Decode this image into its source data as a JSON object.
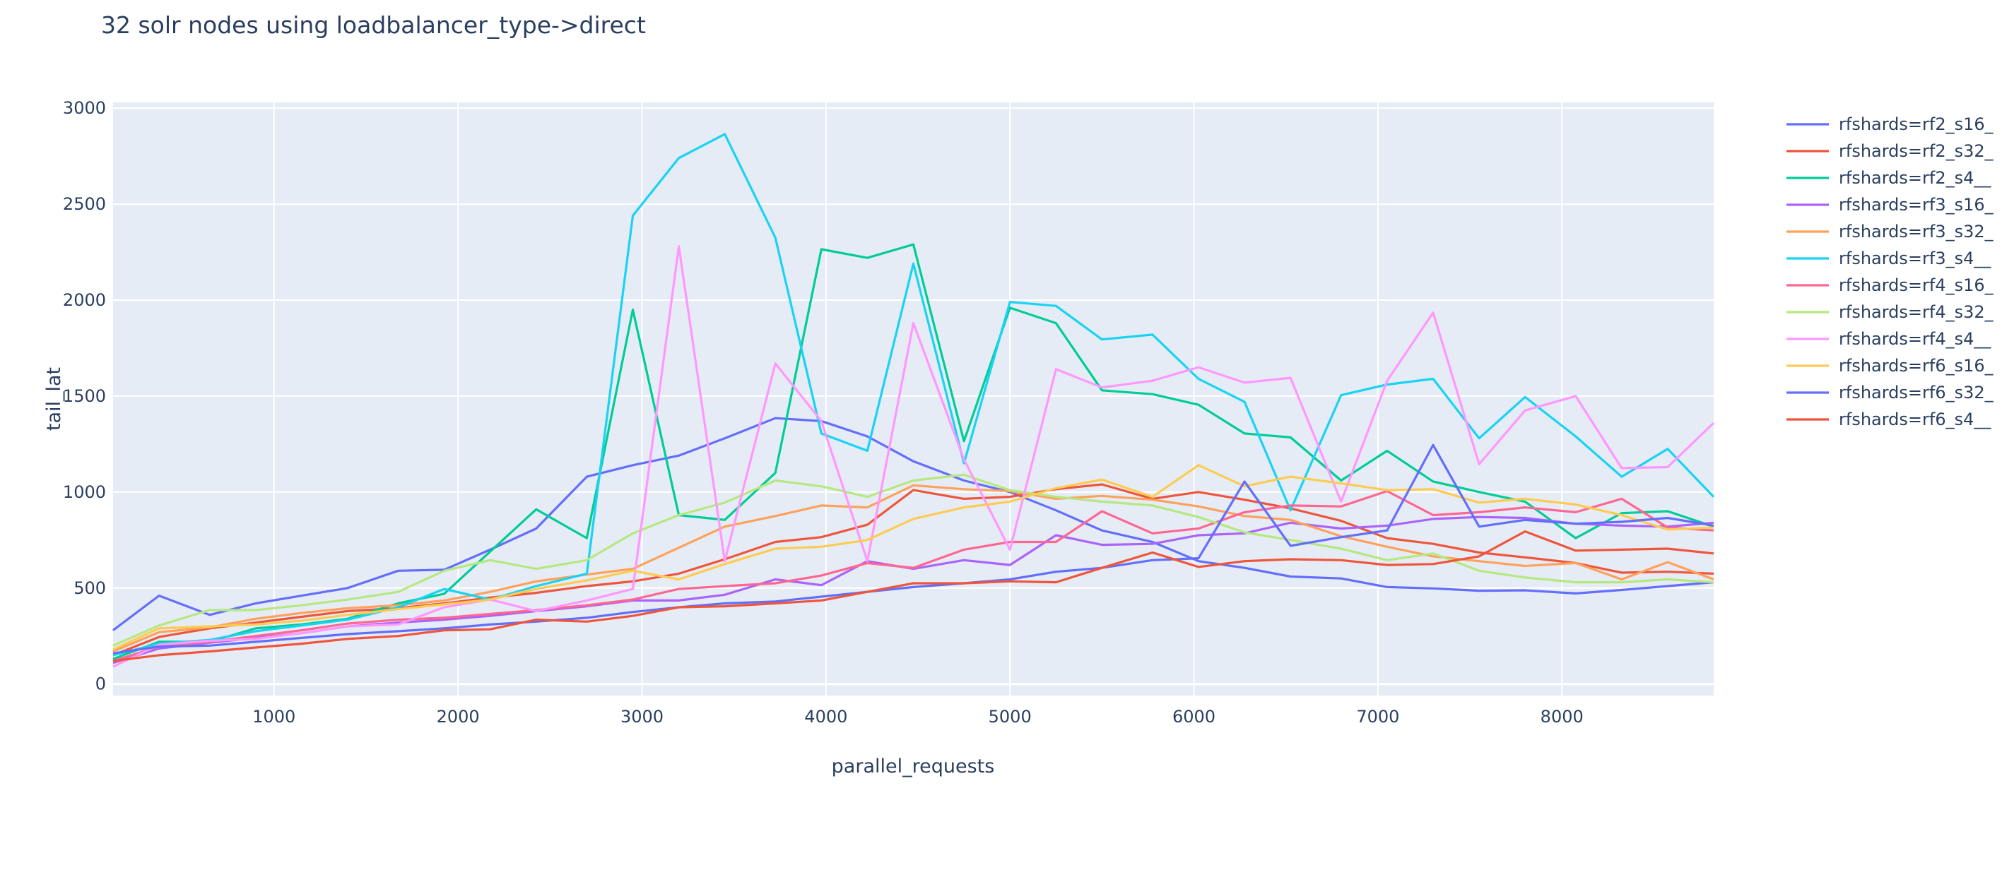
{
  "chart_data": {
    "type": "line",
    "title": "32 solr nodes using loadbalancer_type->direct",
    "xlabel": "parallel_requests",
    "ylabel": "tail_lat",
    "xlim": [
      125,
      8825
    ],
    "ylim": [
      -60,
      3030
    ],
    "x_ticks": [
      1000,
      2000,
      3000,
      4000,
      5000,
      6000,
      7000,
      8000
    ],
    "y_ticks": [
      0,
      500,
      1000,
      1500,
      2000,
      2500,
      3000
    ],
    "grid": true,
    "legend_position": "right",
    "x": [
      125,
      375,
      650,
      900,
      1150,
      1400,
      1675,
      1925,
      2175,
      2425,
      2700,
      2950,
      3200,
      3450,
      3725,
      3975,
      4225,
      4475,
      4750,
      5000,
      5250,
      5500,
      5775,
      6025,
      6275,
      6525,
      6800,
      7050,
      7300,
      7550,
      7800,
      8075,
      8325,
      8575,
      8825
    ],
    "series": [
      {
        "name": "rfshards=rf2_s16_",
        "color": "#636efa",
        "values": [
          280,
          460,
          360,
          420,
          460,
          500,
          590,
          595,
          700,
          810,
          1080,
          1140,
          1190,
          1280,
          1385,
          1370,
          1290,
          1160,
          1060,
          1000,
          905,
          800,
          740,
          640,
          605,
          560,
          550,
          505,
          498,
          486,
          488,
          472,
          490,
          510,
          530
        ]
      },
      {
        "name": "rfshards=rf2_s32_",
        "color": "#EF553B",
        "values": [
          150,
          245,
          290,
          320,
          350,
          380,
          395,
          420,
          450,
          475,
          510,
          535,
          575,
          650,
          740,
          765,
          830,
          1010,
          965,
          975,
          1015,
          1040,
          965,
          1000,
          960,
          915,
          850,
          760,
          730,
          685,
          660,
          630,
          580,
          585,
          575
        ]
      },
      {
        "name": "rfshards=rf2_s4__",
        "color": "#00cc96",
        "values": [
          130,
          220,
          220,
          290,
          310,
          340,
          420,
          470,
          690,
          910,
          760,
          1950,
          880,
          855,
          1100,
          2265,
          2220,
          2290,
          1265,
          1960,
          1880,
          1530,
          1510,
          1455,
          1305,
          1285,
          1060,
          1215,
          1055,
          1000,
          950,
          760,
          890,
          900,
          820
        ]
      },
      {
        "name": "rfshards=rf3_s16_",
        "color": "#ab63fa",
        "values": [
          110,
          185,
          215,
          240,
          265,
          300,
          320,
          335,
          355,
          380,
          405,
          435,
          435,
          465,
          545,
          515,
          640,
          600,
          645,
          620,
          775,
          725,
          730,
          775,
          785,
          840,
          810,
          825,
          860,
          870,
          865,
          835,
          825,
          820,
          840
        ]
      },
      {
        "name": "rfshards=rf3_s32_",
        "color": "#FFA15A",
        "values": [
          170,
          270,
          295,
          340,
          370,
          395,
          410,
          435,
          480,
          535,
          570,
          600,
          710,
          820,
          875,
          930,
          920,
          1035,
          1015,
          1005,
          965,
          980,
          960,
          925,
          875,
          855,
          770,
          715,
          665,
          640,
          615,
          630,
          545,
          635,
          545
        ]
      },
      {
        "name": "rfshards=rf3_s4__",
        "color": "#19d3f3",
        "values": [
          150,
          210,
          230,
          275,
          305,
          335,
          400,
          495,
          440,
          510,
          575,
          2440,
          2740,
          2865,
          2325,
          1305,
          1215,
          2190,
          1150,
          1990,
          1970,
          1795,
          1820,
          1590,
          1470,
          905,
          1505,
          1560,
          1590,
          1280,
          1495,
          1290,
          1080,
          1225,
          975
        ]
      },
      {
        "name": "rfshards=rf4_s16_",
        "color": "#FF6692",
        "values": [
          120,
          195,
          220,
          250,
          280,
          315,
          335,
          345,
          365,
          385,
          410,
          440,
          495,
          510,
          525,
          565,
          630,
          605,
          700,
          740,
          740,
          900,
          785,
          810,
          895,
          930,
          925,
          1005,
          880,
          895,
          920,
          895,
          965,
          815,
          800
        ]
      },
      {
        "name": "rfshards=rf4_s32_",
        "color": "#B6E880",
        "values": [
          200,
          305,
          385,
          385,
          410,
          440,
          480,
          590,
          645,
          600,
          645,
          785,
          880,
          945,
          1060,
          1030,
          975,
          1060,
          1090,
          1010,
          975,
          950,
          930,
          870,
          790,
          750,
          705,
          645,
          680,
          590,
          555,
          530,
          530,
          545,
          530
        ]
      },
      {
        "name": "rfshards=rf4_s4__",
        "color": "#FF97FF",
        "values": [
          90,
          205,
          225,
          235,
          265,
          300,
          310,
          400,
          440,
          380,
          435,
          495,
          2280,
          640,
          1670,
          1370,
          640,
          1880,
          1170,
          700,
          1640,
          1545,
          1580,
          1650,
          1570,
          1595,
          950,
          1580,
          1935,
          1145,
          1425,
          1500,
          1125,
          1130,
          1360
        ]
      },
      {
        "name": "rfshards=rf6_s16_",
        "color": "#FECB52",
        "values": [
          180,
          290,
          300,
          310,
          330,
          360,
          390,
          415,
          440,
          495,
          540,
          590,
          545,
          625,
          705,
          715,
          750,
          860,
          920,
          950,
          1020,
          1065,
          975,
          1140,
          1030,
          1080,
          1045,
          1010,
          1015,
          945,
          965,
          935,
          880,
          805,
          815
        ]
      },
      {
        "name": "rfshards=rf6_s32_",
        "color": "#636efa",
        "values": [
          160,
          195,
          200,
          220,
          240,
          260,
          275,
          290,
          310,
          325,
          345,
          375,
          400,
          420,
          430,
          455,
          480,
          505,
          525,
          545,
          585,
          605,
          645,
          655,
          1055,
          720,
          765,
          800,
          1245,
          820,
          855,
          835,
          845,
          865,
          825
        ]
      },
      {
        "name": "rfshards=rf6_s4__",
        "color": "#EF553B",
        "values": [
          120,
          150,
          170,
          190,
          210,
          235,
          250,
          280,
          285,
          335,
          325,
          355,
          400,
          405,
          420,
          435,
          480,
          525,
          525,
          535,
          530,
          605,
          685,
          610,
          640,
          650,
          645,
          620,
          625,
          665,
          795,
          695,
          700,
          705,
          680
        ]
      }
    ]
  }
}
